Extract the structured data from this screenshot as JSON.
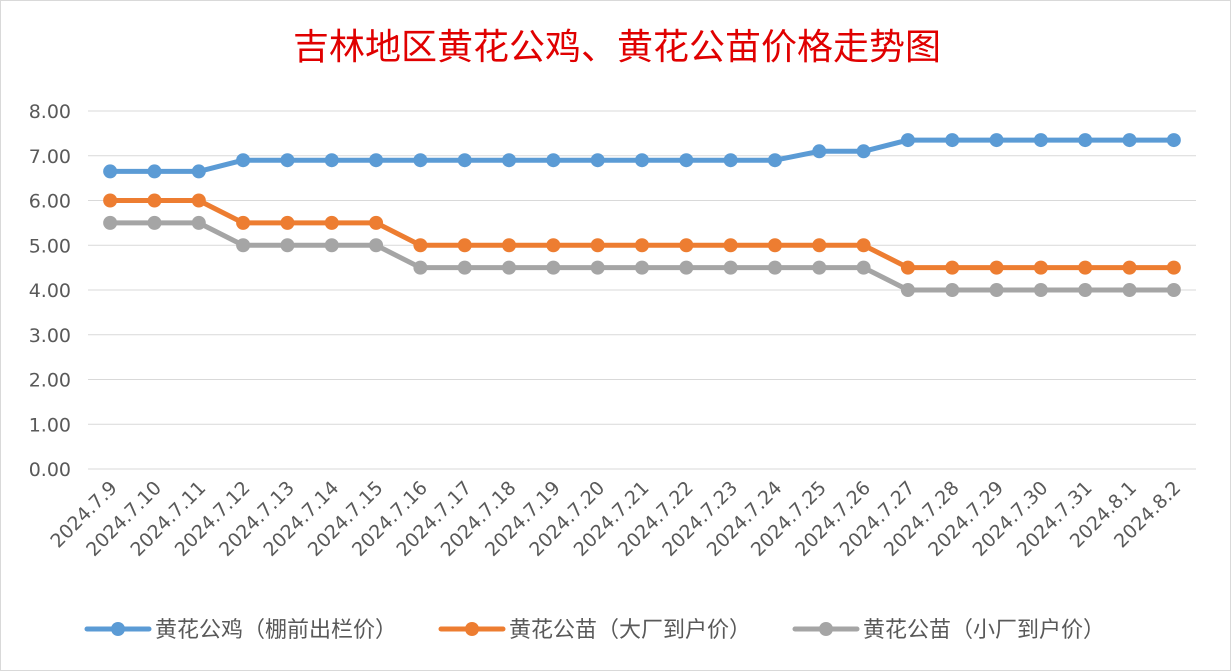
{
  "chart_data": {
    "type": "line",
    "title": "吉林地区黄花公鸡、黄花公苗价格走势图",
    "categories": [
      "2024.7.9",
      "2024.7.10",
      "2024.7.11",
      "2024.7.12",
      "2024.7.13",
      "2024.7.14",
      "2024.7.15",
      "2024.7.16",
      "2024.7.17",
      "2024.7.18",
      "2024.7.19",
      "2024.7.20",
      "2024.7.21",
      "2024.7.22",
      "2024.7.23",
      "2024.7.24",
      "2024.7.25",
      "2024.7.26",
      "2024.7.27",
      "2024.7.28",
      "2024.7.29",
      "2024.7.30",
      "2024.7.31",
      "2024.8.1",
      "2024.8.2"
    ],
    "series": [
      {
        "name": "黄花公鸡（棚前出栏价）",
        "color": "#5B9BD5",
        "values": [
          6.65,
          6.65,
          6.65,
          6.9,
          6.9,
          6.9,
          6.9,
          6.9,
          6.9,
          6.9,
          6.9,
          6.9,
          6.9,
          6.9,
          6.9,
          6.9,
          7.1,
          7.1,
          7.35,
          7.35,
          7.35,
          7.35,
          7.35,
          7.35,
          7.35
        ]
      },
      {
        "name": "黄花公苗（大厂到户价）",
        "color": "#ED7D31",
        "values": [
          6.0,
          6.0,
          6.0,
          5.5,
          5.5,
          5.5,
          5.5,
          5.0,
          5.0,
          5.0,
          5.0,
          5.0,
          5.0,
          5.0,
          5.0,
          5.0,
          5.0,
          5.0,
          4.5,
          4.5,
          4.5,
          4.5,
          4.5,
          4.5,
          4.5
        ]
      },
      {
        "name": "黄花公苗（小厂到户价）",
        "color": "#A5A5A5",
        "values": [
          5.5,
          5.5,
          5.5,
          5.0,
          5.0,
          5.0,
          5.0,
          4.5,
          4.5,
          4.5,
          4.5,
          4.5,
          4.5,
          4.5,
          4.5,
          4.5,
          4.5,
          4.5,
          4.0,
          4.0,
          4.0,
          4.0,
          4.0,
          4.0,
          4.0
        ]
      }
    ],
    "yticks": [
      "0.00",
      "1.00",
      "2.00",
      "3.00",
      "4.00",
      "5.00",
      "6.00",
      "7.00",
      "8.00"
    ],
    "ylim": [
      0,
      8
    ],
    "grid": true,
    "legend_position": "bottom",
    "title_color": "#E00000"
  }
}
